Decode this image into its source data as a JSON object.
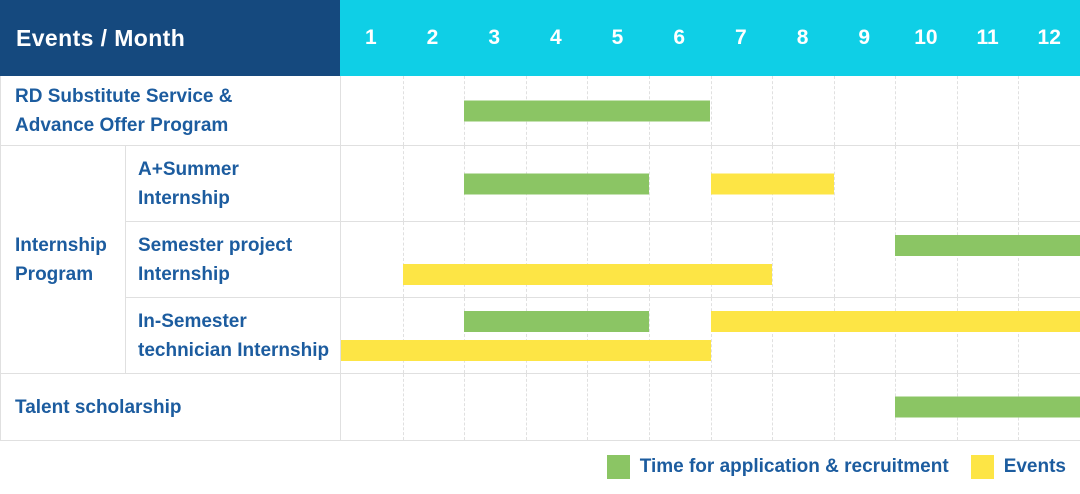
{
  "header": {
    "title": "Events / Month",
    "months": [
      "1",
      "2",
      "3",
      "4",
      "5",
      "6",
      "7",
      "8",
      "9",
      "10",
      "11",
      "12"
    ]
  },
  "labels": {
    "rd_substitute": "RD Substitute Service &\nAdvance Offer Program",
    "internship_group": "Internship\nProgram",
    "a_plus_summer": "A+Summer\nInternship",
    "semester_project": "Semester project\nInternship",
    "in_semester_technician": "In-Semester\ntechnician Internship",
    "talent_scholarship": "Talent scholarship"
  },
  "legend": {
    "items": [
      {
        "label": "Time for application & recruitment",
        "color_key": "green"
      },
      {
        "label": "Events",
        "color_key": "yellow"
      }
    ]
  },
  "colors": {
    "header_bg": "#15497E",
    "month_header_bg": "#0FCFE6",
    "header_text": "#FFFFFF",
    "label_text": "#1C5C9F",
    "green": "#8BC564",
    "yellow": "#FDE545",
    "grid_line": "#E0E0E0"
  },
  "chart_data": {
    "type": "gantt",
    "title": "Events / Month schedule",
    "x_axis": {
      "label": "Month",
      "ticks": [
        1,
        2,
        3,
        4,
        5,
        6,
        7,
        8,
        9,
        10,
        11,
        12
      ],
      "range": [
        1,
        12
      ]
    },
    "grid": "vertical-dashed",
    "legend_position": "bottom-right",
    "series_legend": [
      "Time for application & recruitment",
      "Events"
    ],
    "rows": [
      {
        "label": "RD Substitute Service & Advance Offer Program",
        "group": null,
        "lanes": 1,
        "bars": [
          {
            "series": "Time for application & recruitment",
            "color_key": "green",
            "start_month": 3,
            "end_month": 6,
            "lane": 0
          }
        ]
      },
      {
        "label": "A+Summer Internship",
        "group": "Internship Program",
        "lanes": 1,
        "bars": [
          {
            "series": "Time for application & recruitment",
            "color_key": "green",
            "start_month": 3,
            "end_month": 5,
            "lane": 0
          },
          {
            "series": "Events",
            "color_key": "yellow",
            "start_month": 7,
            "end_month": 8,
            "lane": 0
          }
        ]
      },
      {
        "label": "Semester project Internship",
        "group": "Internship Program",
        "lanes": 2,
        "bars": [
          {
            "series": "Time for application & recruitment",
            "color_key": "green",
            "start_month": 10,
            "end_month": 12,
            "lane": 0
          },
          {
            "series": "Events",
            "color_key": "yellow",
            "start_month": 2,
            "end_month": 7,
            "lane": 1
          }
        ]
      },
      {
        "label": "In-Semester technician Internship",
        "group": "Internship Program",
        "lanes": 2,
        "bars": [
          {
            "series": "Time for application & recruitment",
            "color_key": "green",
            "start_month": 3,
            "end_month": 5,
            "lane": 0
          },
          {
            "series": "Events",
            "color_key": "yellow",
            "start_month": 7,
            "end_month": 12,
            "lane": 0
          },
          {
            "series": "Events",
            "color_key": "yellow",
            "start_month": 1,
            "end_month": 6,
            "lane": 1
          }
        ]
      },
      {
        "label": "Talent scholarship",
        "group": null,
        "lanes": 1,
        "bars": [
          {
            "series": "Time for application & recruitment",
            "color_key": "green",
            "start_month": 10,
            "end_month": 12,
            "lane": 0
          }
        ]
      }
    ]
  }
}
